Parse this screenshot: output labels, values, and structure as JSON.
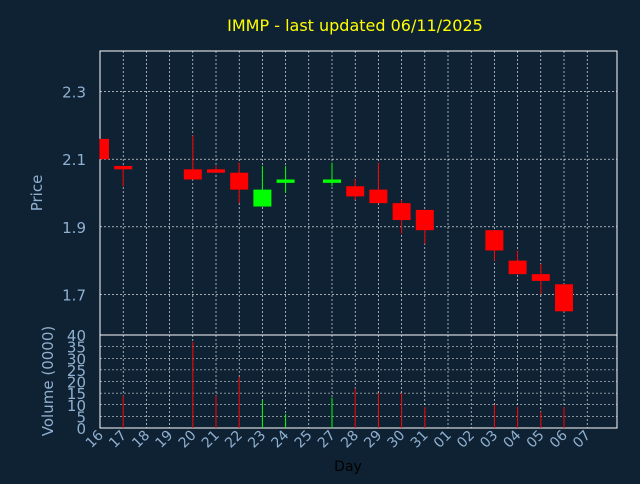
{
  "chart_data": {
    "type": "candlestick",
    "title": "IMMP - last updated 06/11/2025",
    "price_panel": {
      "ylabel": "Price",
      "ylim": [
        1.58,
        2.42
      ],
      "yticks": [
        "1.7",
        "1.9",
        "2.1",
        "2.3"
      ],
      "grid": true
    },
    "volume_panel": {
      "ylabel": "Volume (0000)",
      "ylim": [
        0,
        40
      ],
      "yticks": [
        "0",
        "5",
        "10",
        "15",
        "20",
        "25",
        "30",
        "35",
        "40"
      ],
      "grid": true
    },
    "xlabel": "Day",
    "x_ticks": [
      "16",
      "17",
      "18",
      "19",
      "20",
      "21",
      "22",
      "23",
      "24",
      "25",
      "27",
      "28",
      "29",
      "30",
      "31",
      "01",
      "02",
      "03",
      "04",
      "05",
      "06",
      "07"
    ],
    "up_color": "#00ff00",
    "down_color": "#ff0000",
    "candles": [
      {
        "day": "16",
        "open": 2.16,
        "high": 2.16,
        "low": 2.1,
        "close": 2.1,
        "volume": 0
      },
      {
        "day": "17",
        "open": 2.08,
        "high": 2.08,
        "low": 2.02,
        "close": 2.07,
        "volume": 14
      },
      {
        "day": "20",
        "open": 2.07,
        "high": 2.17,
        "low": 2.04,
        "close": 2.04,
        "volume": 37
      },
      {
        "day": "21",
        "open": 2.07,
        "high": 2.08,
        "low": 2.06,
        "close": 2.06,
        "volume": 14
      },
      {
        "day": "22",
        "open": 2.06,
        "high": 2.09,
        "low": 1.97,
        "close": 2.01,
        "volume": 22
      },
      {
        "day": "23",
        "open": 1.96,
        "high": 2.08,
        "low": 1.96,
        "close": 2.01,
        "volume": 12
      },
      {
        "day": "24",
        "open": 2.03,
        "high": 2.08,
        "low": 2.0,
        "close": 2.04,
        "volume": 6
      },
      {
        "day": "27",
        "open": 2.03,
        "high": 2.09,
        "low": 2.02,
        "close": 2.04,
        "volume": 13
      },
      {
        "day": "28",
        "open": 2.02,
        "high": 2.04,
        "low": 1.98,
        "close": 1.99,
        "volume": 17
      },
      {
        "day": "29",
        "open": 2.01,
        "high": 2.09,
        "low": 1.97,
        "close": 1.97,
        "volume": 15
      },
      {
        "day": "30",
        "open": 1.97,
        "high": 1.98,
        "low": 1.88,
        "close": 1.92,
        "volume": 15
      },
      {
        "day": "31",
        "open": 1.95,
        "high": 1.95,
        "low": 1.85,
        "close": 1.89,
        "volume": 9
      },
      {
        "day": "03",
        "open": 1.89,
        "high": 1.89,
        "low": 1.8,
        "close": 1.83,
        "volume": 10
      },
      {
        "day": "04",
        "open": 1.8,
        "high": 1.83,
        "low": 1.76,
        "close": 1.76,
        "volume": 9
      },
      {
        "day": "05",
        "open": 1.76,
        "high": 1.79,
        "low": 1.7,
        "close": 1.74,
        "volume": 7
      },
      {
        "day": "06",
        "open": 1.73,
        "high": 1.73,
        "low": 1.65,
        "close": 1.65,
        "volume": 9
      }
    ]
  }
}
